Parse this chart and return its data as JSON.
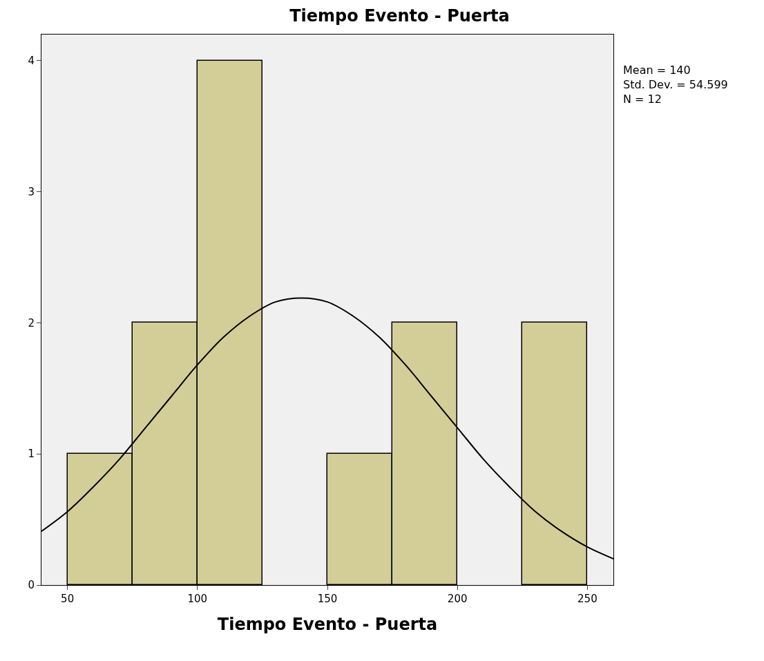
{
  "chart_data": {
    "type": "histogram",
    "title": "Tiempo Evento - Puerta",
    "xlabel": "Tiempo Evento - Puerta",
    "bins": [
      50,
      75,
      100,
      125,
      150,
      175,
      200,
      225,
      250
    ],
    "values": [
      1,
      2,
      4,
      0,
      1,
      2,
      0,
      2
    ],
    "color": "#d3ce98",
    "series": [
      {
        "type": "line",
        "color": "#000000",
        "x": [
          40,
          50,
          60,
          70,
          80,
          90,
          100,
          110,
          120,
          130,
          140,
          150,
          160,
          170,
          180,
          190,
          200,
          210,
          220,
          230,
          240,
          250,
          260
        ],
        "values": [
          0.41,
          0.56,
          0.75,
          0.96,
          1.2,
          1.44,
          1.68,
          1.89,
          2.05,
          2.16,
          2.19,
          2.16,
          2.05,
          1.89,
          1.68,
          1.44,
          1.2,
          0.96,
          0.75,
          0.56,
          0.41,
          0.29,
          0.2
        ]
      }
    ],
    "xlim": [
      40,
      260
    ],
    "xticks": [
      50,
      100,
      150,
      200,
      250
    ],
    "ylim": [
      0,
      4.2
    ],
    "yticks": [
      0,
      1,
      2,
      3,
      4
    ],
    "annotations": [
      "Mean = 140",
      "Std. Dev. = 54.599",
      "N = 12"
    ],
    "grid": false
  }
}
